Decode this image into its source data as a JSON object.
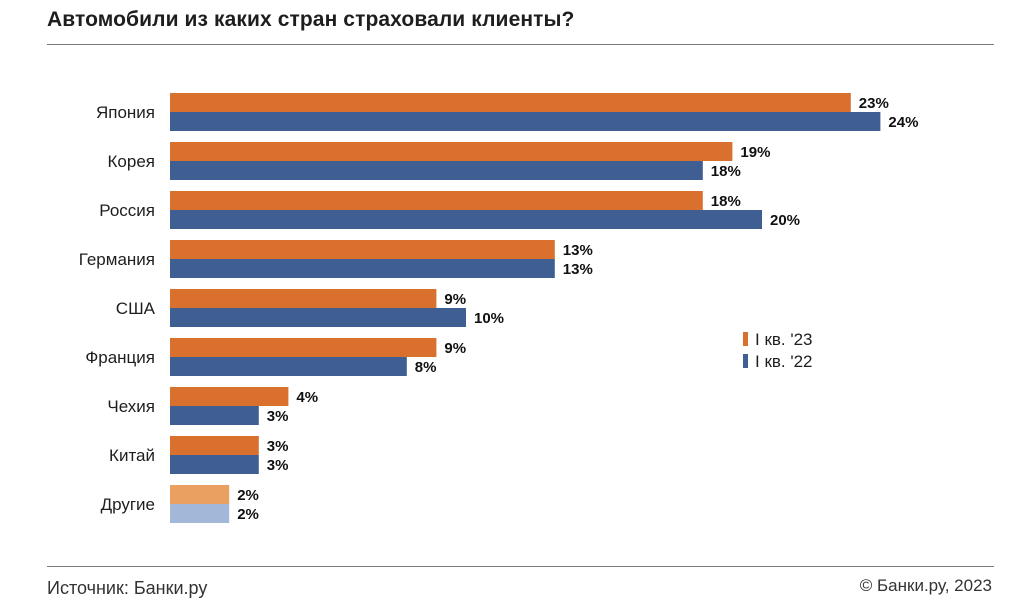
{
  "header": {
    "title": "Автомобили из каких стран страховали клиенты?"
  },
  "footer": {
    "source": "Источник: Банки.ру",
    "copyright": "© Банки.ру, 2023"
  },
  "colors": {
    "series_2023": "#d9702e",
    "series_2022": "#3f5f93",
    "series_2023_light": "#eaa060",
    "series_2022_light": "#a3b7d9"
  },
  "chart_data": {
    "type": "bar",
    "orientation": "horizontal",
    "categories": [
      "Япония",
      "Корея",
      "Россия",
      "Германия",
      "США",
      "Франция",
      "Чехия",
      "Китай",
      "Другие"
    ],
    "series": [
      {
        "name": "I кв. '23",
        "values": [
          23,
          19,
          18,
          13,
          9,
          9,
          4,
          3,
          2
        ]
      },
      {
        "name": "I кв. '22",
        "values": [
          24,
          18,
          20,
          13,
          10,
          8,
          3,
          3,
          2
        ]
      }
    ],
    "value_labels": [
      [
        "23%",
        "19%",
        "18%",
        "13%",
        "9%",
        "9%",
        "4%",
        "3%",
        "2%"
      ],
      [
        "24%",
        "18%",
        "20%",
        "13%",
        "10%",
        "8%",
        "3%",
        "3%",
        "2%"
      ]
    ],
    "unit": "%",
    "grid": false,
    "legend_position": "right"
  }
}
